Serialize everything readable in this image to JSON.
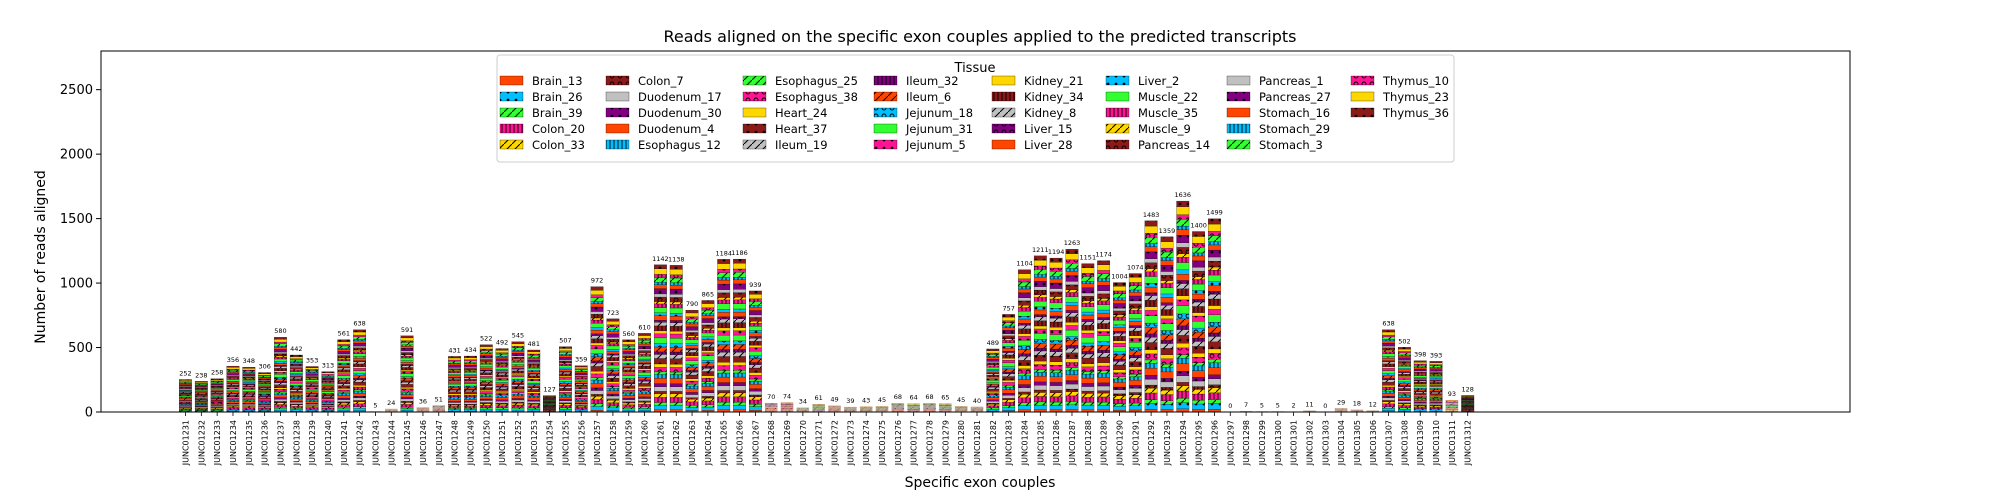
{
  "chart_data": {
    "type": "bar",
    "stacked": true,
    "title": "Reads aligned on the specific exon couples applied to the predicted transcripts",
    "xlabel": "Specific exon couples",
    "ylabel": "Number of reads aligned",
    "ylim": [
      0,
      2800
    ],
    "yticks": [
      0,
      500,
      1000,
      1500,
      2000,
      2500
    ],
    "legend_title": "Tissue",
    "legend_placement": "top-center",
    "categories": [
      "JUNC01231",
      "JUNC01232",
      "JUNC01233",
      "JUNC01234",
      "JUNC01235",
      "JUNC01236",
      "JUNC01237",
      "JUNC01238",
      "JUNC01239",
      "JUNC01240",
      "JUNC01241",
      "JUNC01242",
      "JUNC01243",
      "JUNC01244",
      "JUNC01245",
      "JUNC01246",
      "JUNC01247",
      "JUNC01248",
      "JUNC01249",
      "JUNC01250",
      "JUNC01251",
      "JUNC01252",
      "JUNC01253",
      "JUNC01254",
      "JUNC01255",
      "JUNC01256",
      "JUNC01257",
      "JUNC01258",
      "JUNC01259",
      "JUNC01260",
      "JUNC01261",
      "JUNC01262",
      "JUNC01263",
      "JUNC01264",
      "JUNC01265",
      "JUNC01266",
      "JUNC01267",
      "JUNC01268",
      "JUNC01269",
      "JUNC01270",
      "JUNC01271",
      "JUNC01272",
      "JUNC01273",
      "JUNC01274",
      "JUNC01275",
      "JUNC01276",
      "JUNC01277",
      "JUNC01278",
      "JUNC01279",
      "JUNC01280",
      "JUNC01281",
      "JUNC01282",
      "JUNC01283",
      "JUNC01284",
      "JUNC01285",
      "JUNC01286",
      "JUNC01287",
      "JUNC01288",
      "JUNC01289",
      "JUNC01290",
      "JUNC01291",
      "JUNC01292",
      "JUNC01293",
      "JUNC01294",
      "JUNC01295",
      "JUNC01296",
      "JUNC01297",
      "JUNC01298",
      "JUNC01299",
      "JUNC01300",
      "JUNC01301",
      "JUNC01302",
      "JUNC01303",
      "JUNC01304",
      "JUNC01305",
      "JUNC01306",
      "JUNC01307",
      "JUNC01308",
      "JUNC01309",
      "JUNC01310",
      "JUNC01311",
      "JUNC01312"
    ],
    "totals": [
      252,
      238,
      258,
      356,
      348,
      306,
      580,
      442,
      353,
      313,
      561,
      638,
      5,
      24,
      591,
      36,
      51,
      431,
      434,
      522,
      492,
      545,
      481,
      127,
      507,
      359,
      972,
      723,
      560,
      610,
      1142,
      1138,
      790,
      865,
      1184,
      1186,
      939,
      70,
      74,
      34,
      61,
      49,
      39,
      43,
      45,
      68,
      64,
      68,
      65,
      45,
      40,
      489,
      757,
      1104,
      1211,
      1194,
      1263,
      1151,
      1174,
      1004,
      1074,
      1483,
      1359,
      1636,
      1400,
      1499,
      0,
      7,
      5,
      5,
      2,
      11,
      0,
      29,
      18,
      12,
      638,
      502,
      398,
      393,
      93,
      128
    ],
    "series": [
      {
        "name": "Brain_13",
        "color": "#ff4500",
        "hatch": "none"
      },
      {
        "name": "Brain_26",
        "color": "#00bfff",
        "hatch": "dot"
      },
      {
        "name": "Brain_39",
        "color": "#32ff32",
        "hatch": "slash"
      },
      {
        "name": "Colon_20",
        "color": "#ff1493",
        "hatch": "bar"
      },
      {
        "name": "Colon_33",
        "color": "#ffd700",
        "hatch": "slash"
      },
      {
        "name": "Colon_7",
        "color": "#8b1a1a",
        "hatch": "circle"
      },
      {
        "name": "Duodenum_17",
        "color": "#c0c0c0",
        "hatch": "none"
      },
      {
        "name": "Duodenum_30",
        "color": "#800080",
        "hatch": "dot"
      },
      {
        "name": "Duodenum_4",
        "color": "#ff4500",
        "hatch": "none"
      },
      {
        "name": "Esophagus_12",
        "color": "#00bfff",
        "hatch": "bar"
      },
      {
        "name": "Esophagus_25",
        "color": "#32ff32",
        "hatch": "slash"
      },
      {
        "name": "Esophagus_38",
        "color": "#ff1493",
        "hatch": "circle"
      },
      {
        "name": "Heart_24",
        "color": "#ffd700",
        "hatch": "none"
      },
      {
        "name": "Heart_37",
        "color": "#8b1a1a",
        "hatch": "dot"
      },
      {
        "name": "Ileum_19",
        "color": "#c0c0c0",
        "hatch": "slash"
      },
      {
        "name": "Ileum_32",
        "color": "#800080",
        "hatch": "bar"
      },
      {
        "name": "Ileum_6",
        "color": "#ff4500",
        "hatch": "slash"
      },
      {
        "name": "Jejunum_18",
        "color": "#00bfff",
        "hatch": "circle"
      },
      {
        "name": "Jejunum_31",
        "color": "#32ff32",
        "hatch": "none"
      },
      {
        "name": "Jejunum_5",
        "color": "#ff1493",
        "hatch": "dot"
      },
      {
        "name": "Kidney_21",
        "color": "#ffd700",
        "hatch": "none"
      },
      {
        "name": "Kidney_34",
        "color": "#8b1a1a",
        "hatch": "bar"
      },
      {
        "name": "Kidney_8",
        "color": "#c0c0c0",
        "hatch": "slash"
      },
      {
        "name": "Liver_15",
        "color": "#800080",
        "hatch": "circle"
      },
      {
        "name": "Liver_28",
        "color": "#ff4500",
        "hatch": "none"
      },
      {
        "name": "Liver_2",
        "color": "#00bfff",
        "hatch": "dot"
      },
      {
        "name": "Muscle_22",
        "color": "#32ff32",
        "hatch": "none"
      },
      {
        "name": "Muscle_35",
        "color": "#ff1493",
        "hatch": "bar"
      },
      {
        "name": "Muscle_9",
        "color": "#ffd700",
        "hatch": "slash"
      },
      {
        "name": "Pancreas_14",
        "color": "#8b1a1a",
        "hatch": "circle"
      },
      {
        "name": "Pancreas_1",
        "color": "#c0c0c0",
        "hatch": "none"
      },
      {
        "name": "Pancreas_27",
        "color": "#800080",
        "hatch": "dot"
      },
      {
        "name": "Stomach_16",
        "color": "#ff4500",
        "hatch": "none"
      },
      {
        "name": "Stomach_29",
        "color": "#00bfff",
        "hatch": "bar"
      },
      {
        "name": "Stomach_3",
        "color": "#32ff32",
        "hatch": "slash"
      },
      {
        "name": "Thymus_10",
        "color": "#ff1493",
        "hatch": "circle"
      },
      {
        "name": "Thymus_23",
        "color": "#ffd700",
        "hatch": "none"
      },
      {
        "name": "Thymus_36",
        "color": "#8b1a1a",
        "hatch": "dot"
      }
    ]
  }
}
